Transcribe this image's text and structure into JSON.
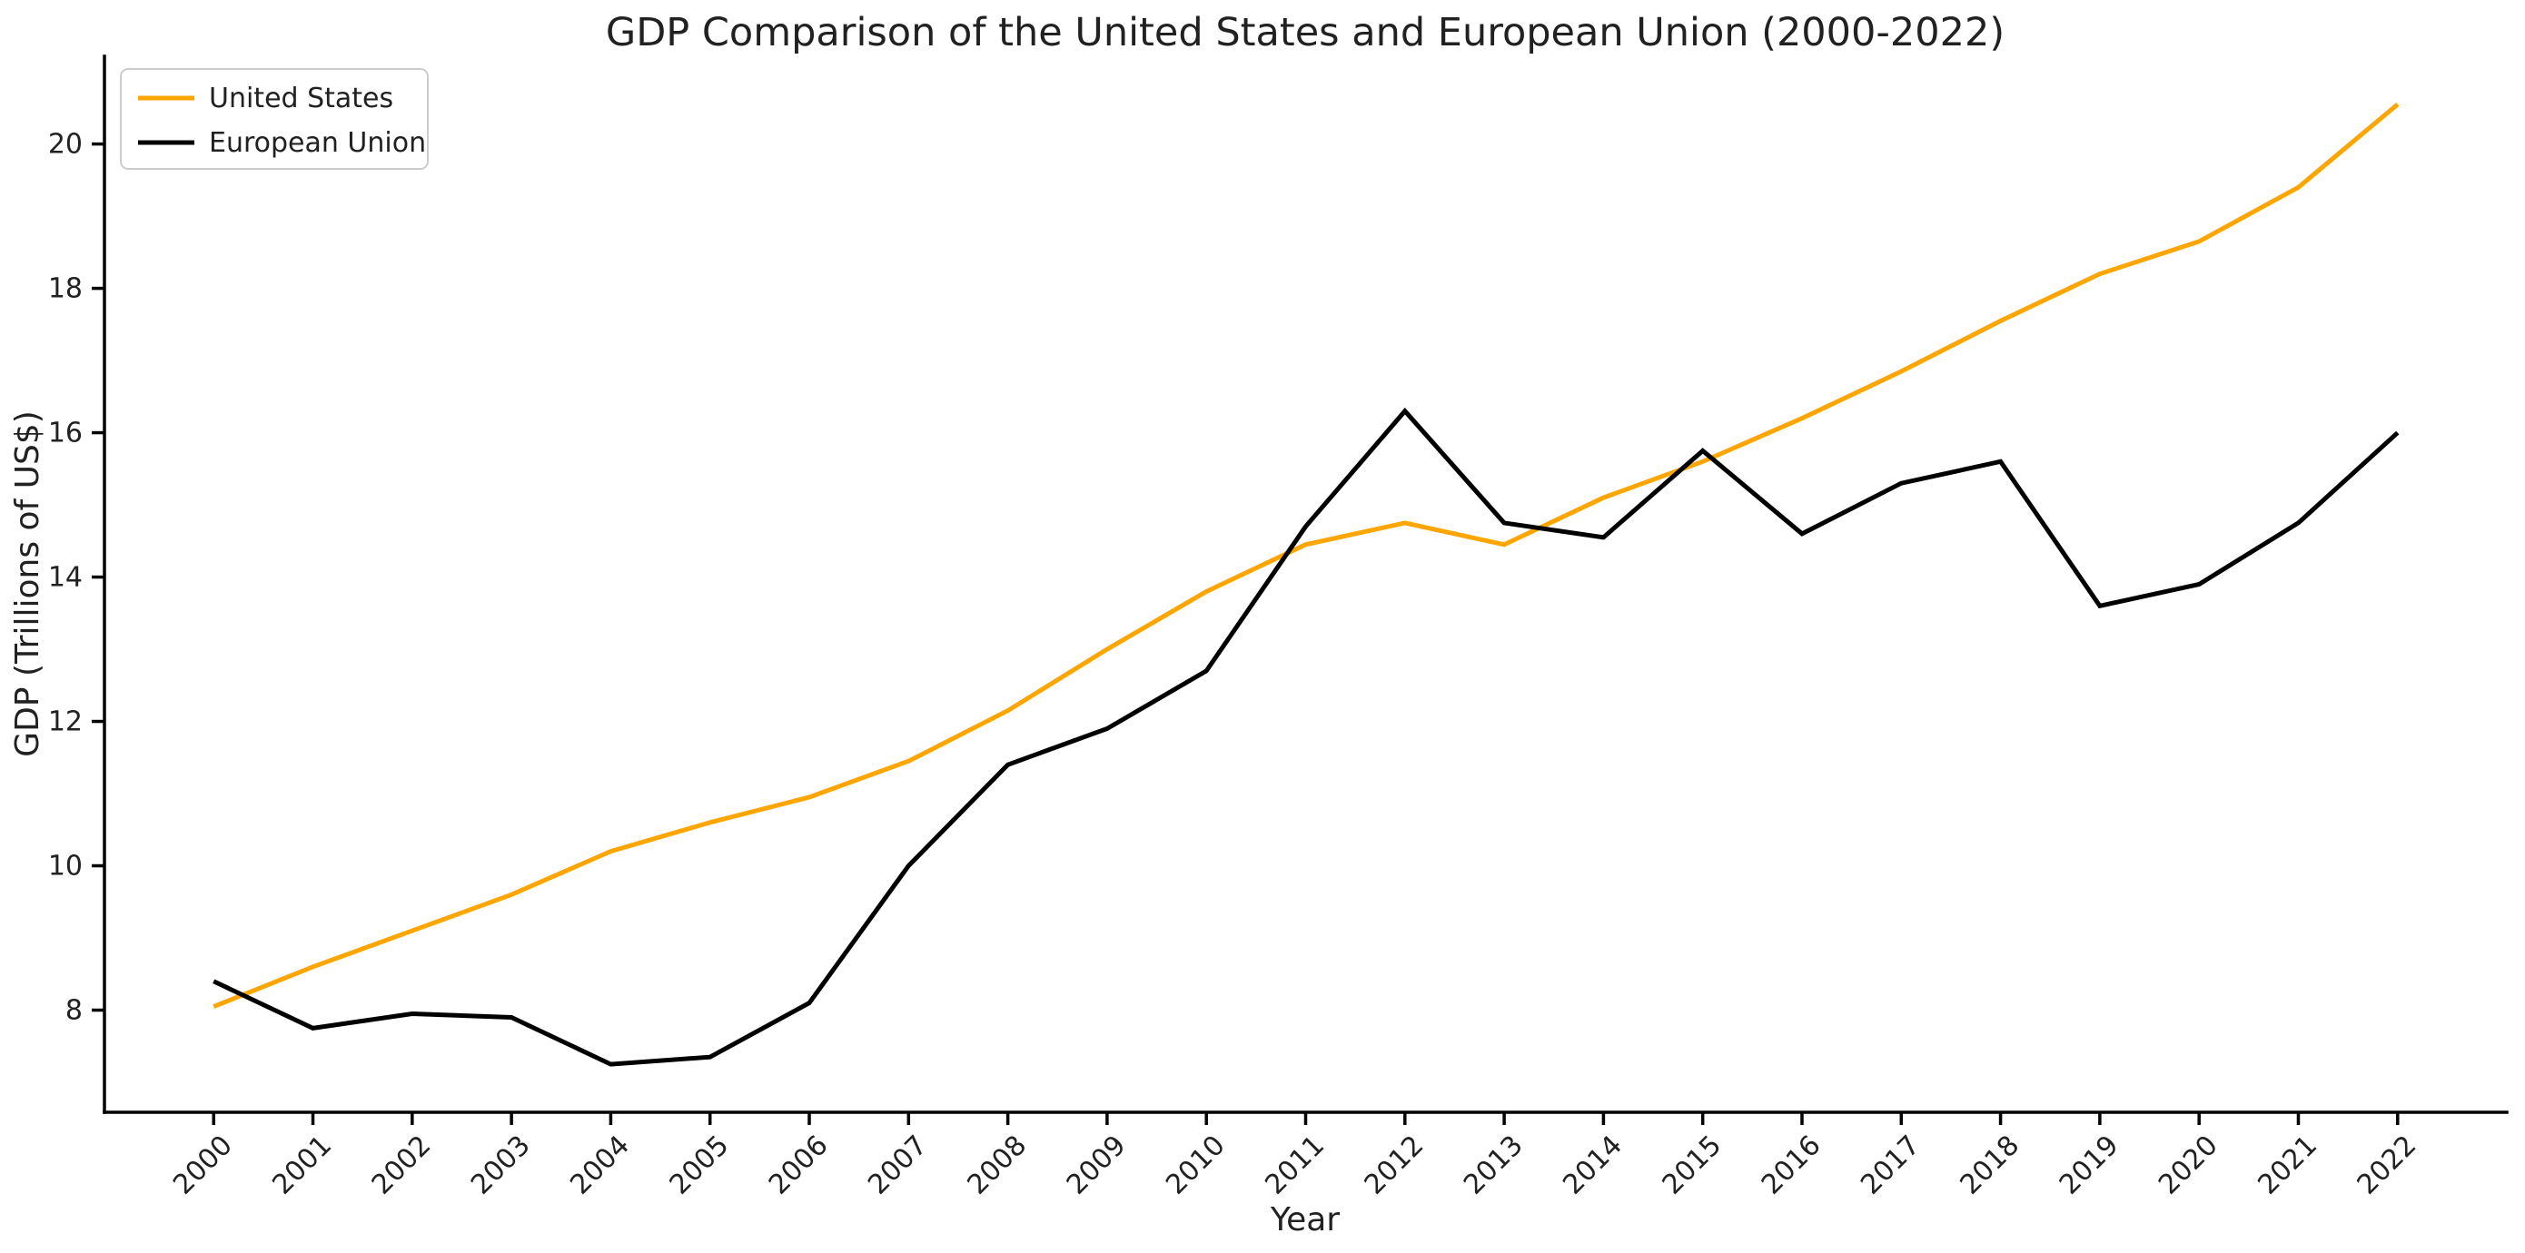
{
  "title": "GDP Comparison of the United States and European Union (2000-2022)",
  "colors": {
    "united_states_line": "#FFA500",
    "european_union_line": "#000000",
    "axis": "#000000",
    "text": "#212121",
    "legend_border": "#cccccc",
    "background": "#ffffff"
  },
  "legend": {
    "position": "upper left",
    "entries": [
      "United States",
      "European Union"
    ]
  },
  "chart_data": {
    "type": "line",
    "title": "GDP Comparison of the United States and European Union (2000-2022)",
    "xlabel": "Year",
    "ylabel": "GDP (Trillions of US$)",
    "categories": [
      "2000",
      "2001",
      "2002",
      "2003",
      "2004",
      "2005",
      "2006",
      "2007",
      "2008",
      "2009",
      "2010",
      "2011",
      "2012",
      "2013",
      "2014",
      "2015",
      "2016",
      "2017",
      "2018",
      "2019",
      "2020",
      "2021",
      "2022"
    ],
    "series": [
      {
        "name": "United States",
        "color": "#FFA500",
        "values": [
          8.05,
          8.6,
          9.1,
          9.6,
          10.2,
          10.6,
          10.95,
          11.45,
          12.15,
          13.0,
          13.8,
          14.45,
          14.75,
          14.45,
          15.1,
          15.6,
          16.2,
          16.85,
          17.55,
          18.2,
          18.65,
          19.4,
          20.55
        ]
      },
      {
        "name": "European Union",
        "color": "#000000",
        "values": [
          8.4,
          7.75,
          7.95,
          7.9,
          7.25,
          7.35,
          8.1,
          10.0,
          11.4,
          11.9,
          12.7,
          14.7,
          16.3,
          14.75,
          14.55,
          15.75,
          14.6,
          15.3,
          15.6,
          13.6,
          13.9,
          14.75,
          16.0
        ]
      }
    ],
    "xlim": [
      1998.9,
      2023.1
    ],
    "ylim": [
      6.585,
      21.215
    ],
    "yticks": [
      8,
      10,
      12,
      14,
      16,
      18,
      20
    ],
    "x_tick_rotation": 45,
    "grid": false,
    "legend_position": "upper left"
  }
}
